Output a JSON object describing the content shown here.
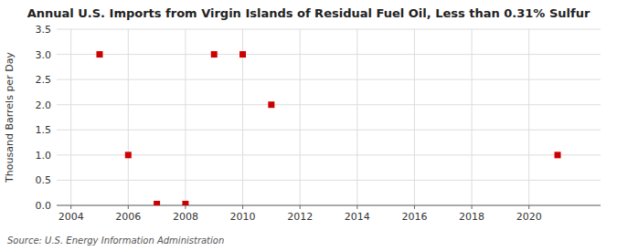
{
  "chart_data": {
    "type": "scatter",
    "title": "Annual U.S. Imports from Virgin Islands of Residual Fuel Oil, Less than 0.31% Sulfur",
    "ylabel": "Thousand Barrels per Day",
    "annotations": [
      "Source: U.S. Energy Information Administration"
    ],
    "x": [
      2005,
      2006,
      2007,
      2008,
      2009,
      2010,
      2011,
      2021
    ],
    "values": [
      3.0,
      1.0,
      0.027,
      0.027,
      3.0,
      3.0,
      2.0,
      1.0
    ],
    "color": "#cc0000",
    "marker": "square",
    "grid": true,
    "xlim": [
      2003.5,
      2022.5
    ],
    "xticks": [
      2004,
      2006,
      2008,
      2010,
      2012,
      2014,
      2016,
      2018,
      2020
    ],
    "ylim": [
      0.0,
      3.5
    ],
    "yticks": [
      {
        "value": 0.0,
        "label": "0.0"
      },
      0.5,
      {
        "value": 1.0,
        "label": "1.0"
      },
      1.5,
      {
        "value": 2.0,
        "label": "2.0"
      },
      2.5,
      {
        "value": 3.0,
        "label": "3.0"
      },
      3.5
    ]
  }
}
